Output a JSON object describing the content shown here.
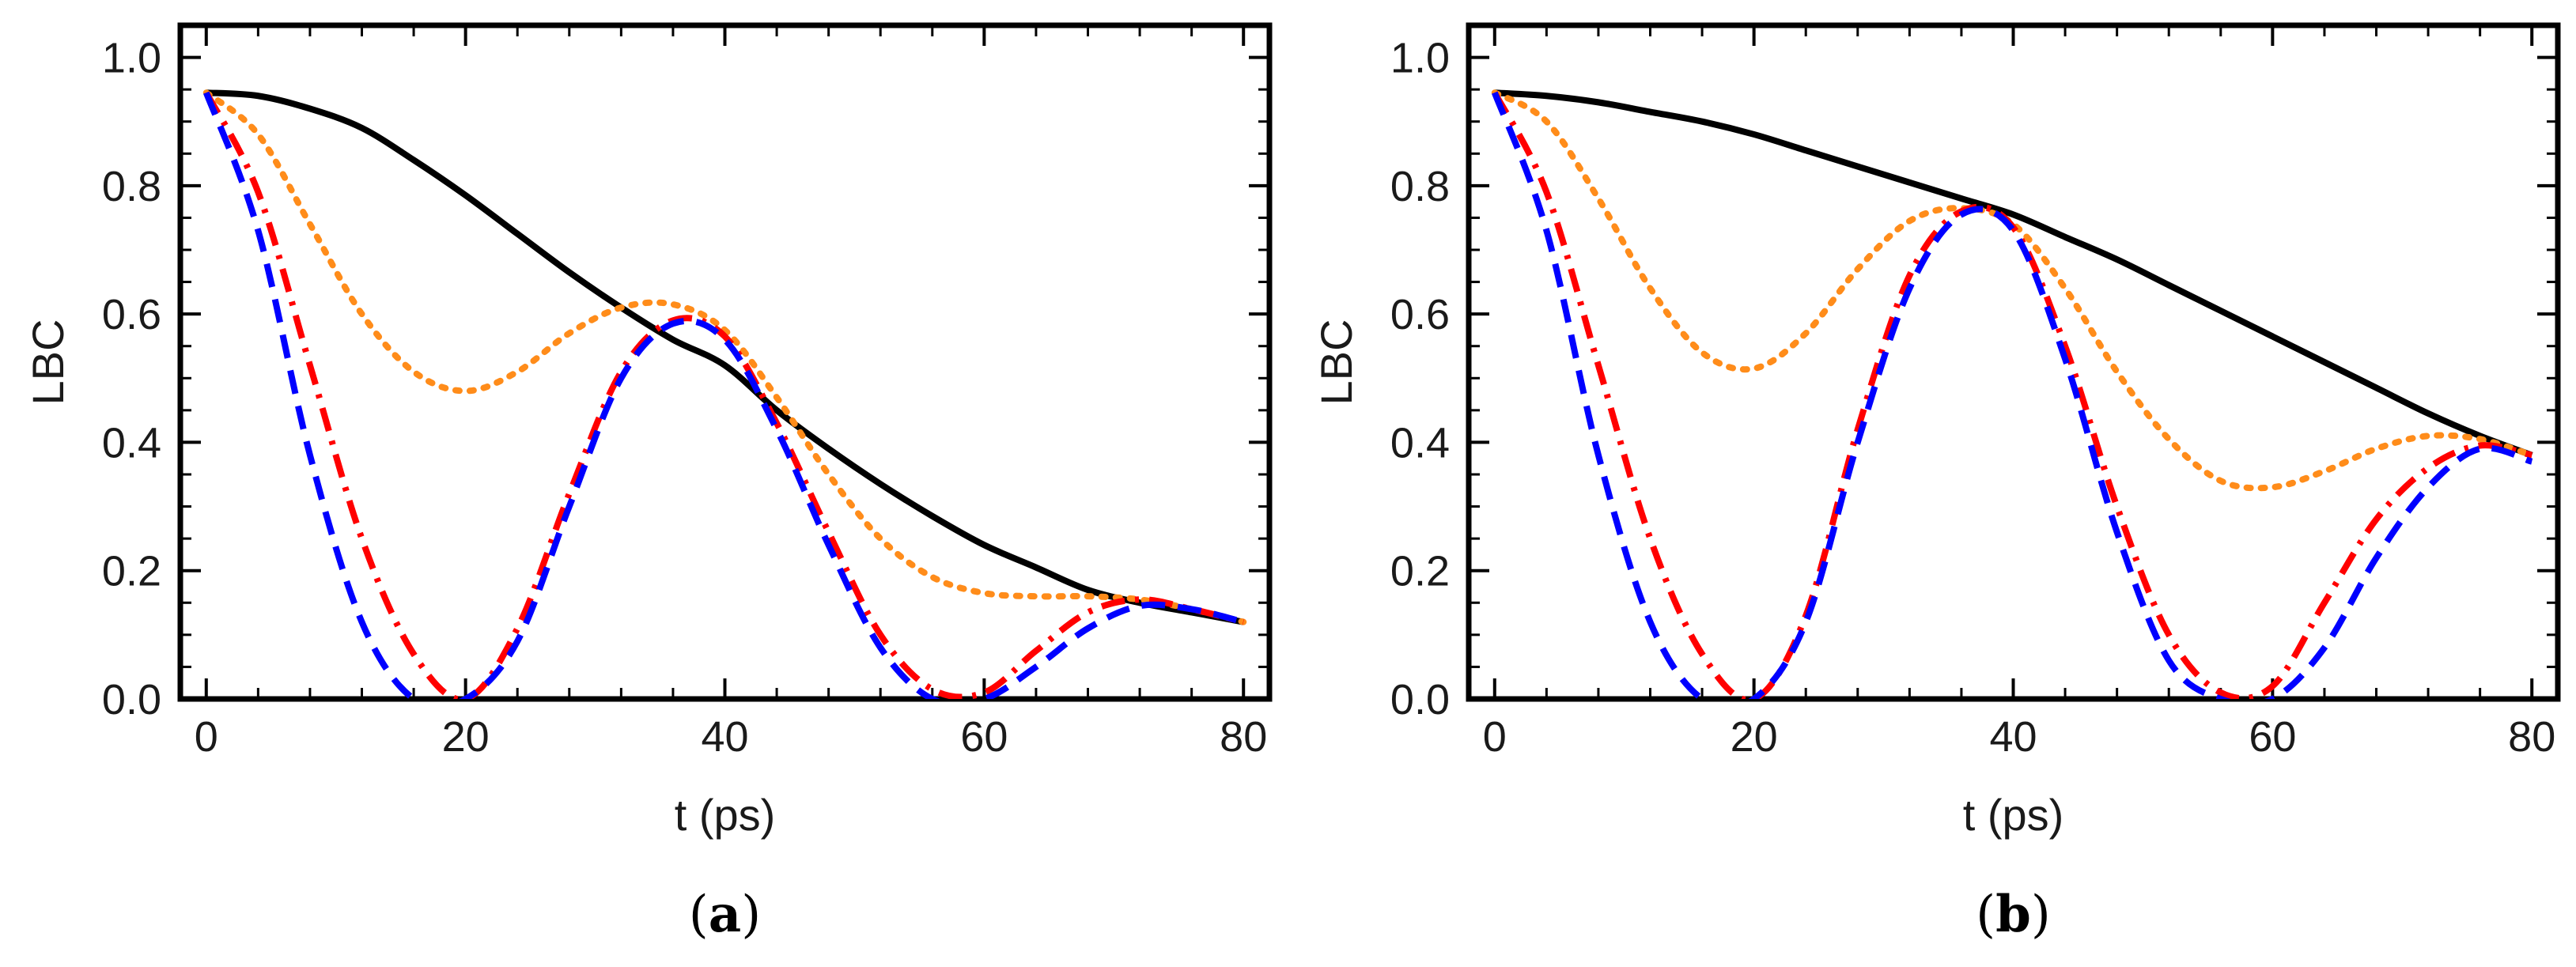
{
  "chart_data": [
    {
      "type": "line",
      "caption_prefix": "(",
      "caption_letter": "a",
      "caption_suffix": ")",
      "xlabel": "t (ps)",
      "ylabel": "LBC",
      "xlim": [
        -2,
        82
      ],
      "ylim": [
        0,
        1.05
      ],
      "xticks": [
        0,
        20,
        40,
        60,
        80
      ],
      "xtick_labels": [
        "0",
        "20",
        "40",
        "60",
        "80"
      ],
      "yticks": [
        0,
        0.2,
        0.4,
        0.6,
        0.8,
        1.0
      ],
      "ytick_labels": [
        "0.0",
        "0.2",
        "0.4",
        "0.6",
        "0.8",
        "1.0"
      ],
      "x": [
        0,
        4,
        8,
        12,
        16,
        20,
        24,
        28,
        32,
        36,
        40,
        44,
        48,
        52,
        56,
        60,
        64,
        68,
        72,
        76,
        80
      ],
      "series": [
        {
          "name": "solid",
          "color": "#000000",
          "dash": "solid",
          "values": [
            0.945,
            0.94,
            0.92,
            0.89,
            0.84,
            0.785,
            0.725,
            0.665,
            0.61,
            0.56,
            0.52,
            0.45,
            0.39,
            0.335,
            0.285,
            0.24,
            0.205,
            0.17,
            0.15,
            0.135,
            0.12
          ]
        },
        {
          "name": "dotted",
          "color": "#ff8c1a",
          "dash": "dotted",
          "values": [
            0.945,
            0.88,
            0.74,
            0.6,
            0.51,
            0.48,
            0.51,
            0.57,
            0.61,
            0.615,
            0.575,
            0.47,
            0.35,
            0.25,
            0.19,
            0.165,
            0.16,
            0.16,
            0.155,
            0.14,
            0.12
          ]
        },
        {
          "name": "dash-dot",
          "color": "#ff0000",
          "dash": "dashdot",
          "values": [
            0.945,
            0.79,
            0.52,
            0.25,
            0.07,
            0.0,
            0.11,
            0.32,
            0.51,
            0.59,
            0.565,
            0.43,
            0.26,
            0.1,
            0.015,
            0.01,
            0.075,
            0.135,
            0.155,
            0.14,
            0.12
          ]
        },
        {
          "name": "dashed",
          "color": "#0000ff",
          "dash": "dashed",
          "values": [
            0.945,
            0.73,
            0.38,
            0.12,
            0.0,
            0.0,
            0.09,
            0.3,
            0.5,
            0.585,
            0.56,
            0.42,
            0.24,
            0.08,
            0.0,
            0.0,
            0.05,
            0.11,
            0.145,
            0.14,
            0.12
          ]
        }
      ]
    },
    {
      "type": "line",
      "caption_prefix": "(",
      "caption_letter": "b",
      "caption_suffix": ")",
      "xlabel": "t (ps)",
      "ylabel": "LBC",
      "xlim": [
        -2,
        82
      ],
      "ylim": [
        0,
        1.05
      ],
      "xticks": [
        0,
        20,
        40,
        60,
        80
      ],
      "xtick_labels": [
        "0",
        "20",
        "40",
        "60",
        "80"
      ],
      "yticks": [
        0,
        0.2,
        0.4,
        0.6,
        0.8,
        1.0
      ],
      "ytick_labels": [
        "0.0",
        "0.2",
        "0.4",
        "0.6",
        "0.8",
        "1.0"
      ],
      "x": [
        0,
        4,
        8,
        12,
        16,
        20,
        24,
        28,
        32,
        36,
        40,
        44,
        48,
        52,
        56,
        60,
        64,
        68,
        72,
        76,
        80
      ],
      "series": [
        {
          "name": "solid",
          "color": "#000000",
          "dash": "solid",
          "values": [
            0.945,
            0.94,
            0.93,
            0.915,
            0.9,
            0.88,
            0.855,
            0.83,
            0.805,
            0.78,
            0.755,
            0.72,
            0.685,
            0.645,
            0.605,
            0.565,
            0.525,
            0.485,
            0.445,
            0.41,
            0.38
          ]
        },
        {
          "name": "dotted",
          "color": "#ff8c1a",
          "dash": "dotted",
          "values": [
            0.945,
            0.9,
            0.78,
            0.64,
            0.54,
            0.515,
            0.57,
            0.67,
            0.745,
            0.765,
            0.74,
            0.64,
            0.51,
            0.405,
            0.34,
            0.33,
            0.355,
            0.39,
            0.41,
            0.405,
            0.38
          ]
        },
        {
          "name": "dash-dot",
          "color": "#ff0000",
          "dash": "dashdot",
          "values": [
            0.945,
            0.79,
            0.52,
            0.25,
            0.07,
            0.0,
            0.13,
            0.42,
            0.66,
            0.76,
            0.735,
            0.55,
            0.3,
            0.1,
            0.01,
            0.02,
            0.15,
            0.28,
            0.36,
            0.395,
            0.38
          ]
        },
        {
          "name": "dashed",
          "color": "#0000ff",
          "dash": "dashed",
          "values": [
            0.945,
            0.73,
            0.38,
            0.12,
            0.0,
            0.0,
            0.12,
            0.4,
            0.64,
            0.755,
            0.73,
            0.53,
            0.26,
            0.06,
            0.0,
            0.0,
            0.08,
            0.22,
            0.33,
            0.39,
            0.37
          ]
        }
      ]
    }
  ]
}
